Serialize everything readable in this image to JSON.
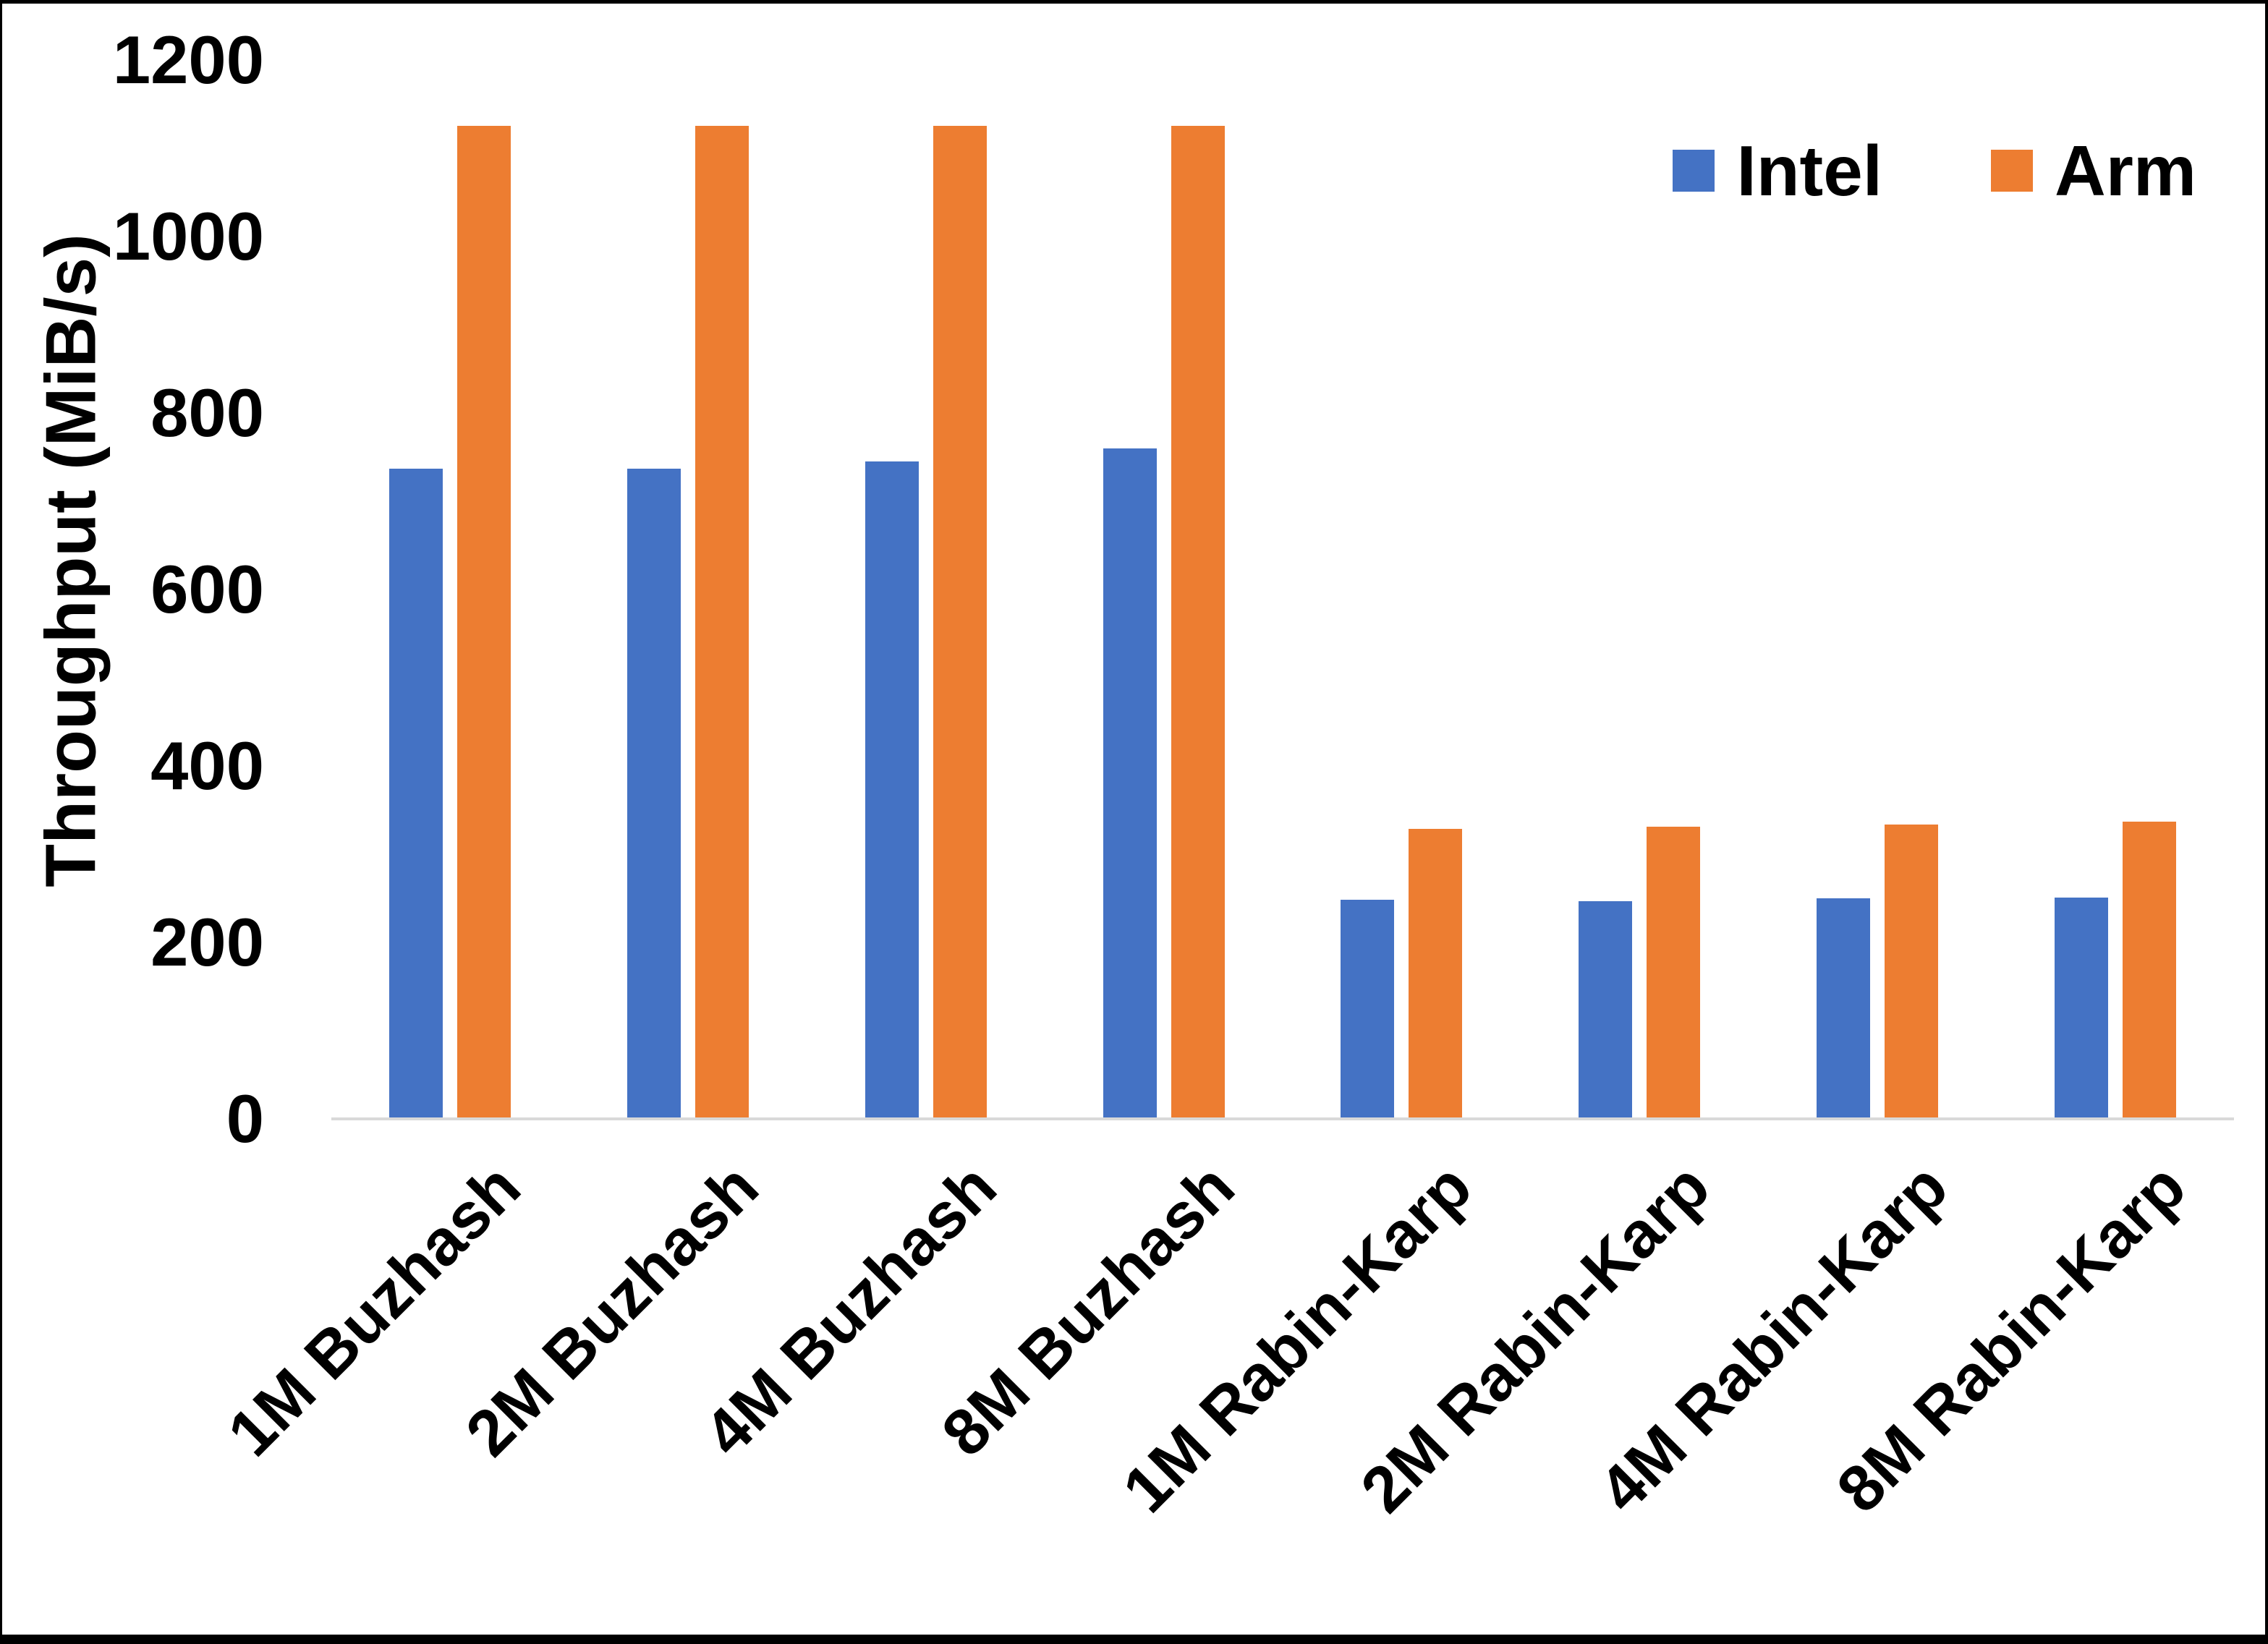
{
  "figure": {
    "y_axis_title": "Throughput (MiB/s)"
  },
  "colors": {
    "intel": "#4472C4",
    "arm": "#ED7D31",
    "axis_line": "#D9D9D9",
    "text": "#000000",
    "frame": "#000000",
    "background": "#FFFFFF"
  },
  "chart_data": {
    "type": "bar",
    "title": "",
    "xlabel": "",
    "ylabel": "Throughput (MiB/s)",
    "categories": [
      "1M Buzhash",
      "2M Buzhash",
      "4M Buzhash",
      "8M Buzhash",
      "1M Rabin-Karp",
      "2M Rabin-Karp",
      "4M Rabin-Karp",
      "8M Rabin-Karp"
    ],
    "series": [
      {
        "name": "Intel",
        "color": "#4472C4",
        "values": [
          737,
          737,
          745,
          760,
          248,
          247,
          250,
          251
        ]
      },
      {
        "name": "Arm",
        "color": "#ED7D31",
        "values": [
          1125,
          1125,
          1125,
          1125,
          329,
          331,
          334,
          337
        ]
      }
    ],
    "ylim": [
      0,
      1200
    ],
    "yticks": [
      0,
      200,
      400,
      600,
      800,
      1000,
      1200
    ],
    "grid": false,
    "legend_position": "top-right"
  }
}
